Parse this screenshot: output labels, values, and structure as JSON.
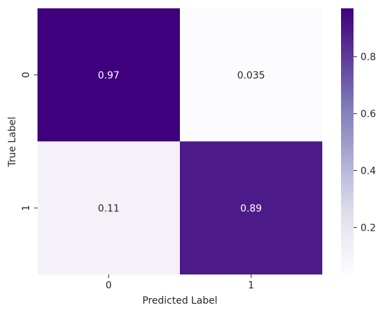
{
  "chart_data": {
    "type": "heatmap",
    "title": "",
    "xlabel": "Predicted Label",
    "ylabel": "True Label",
    "x_categories": [
      "0",
      "1"
    ],
    "y_categories": [
      "0",
      "1"
    ],
    "values": [
      [
        0.97,
        0.035
      ],
      [
        0.11,
        0.89
      ]
    ],
    "annotations": [
      [
        "0.97",
        "0.035"
      ],
      [
        "0.11",
        "0.89"
      ]
    ],
    "colormap": "Purples",
    "vmin": 0.035,
    "vmax": 0.97,
    "colorbar_ticks": [
      0.2,
      0.4,
      0.6,
      0.8
    ],
    "colorbar_tick_labels": [
      "0.2",
      "0.4",
      "0.6",
      "0.8"
    ],
    "grid": false,
    "annotation_colors": {
      "on_dark": "#ffffff",
      "on_light": "#262626"
    }
  }
}
